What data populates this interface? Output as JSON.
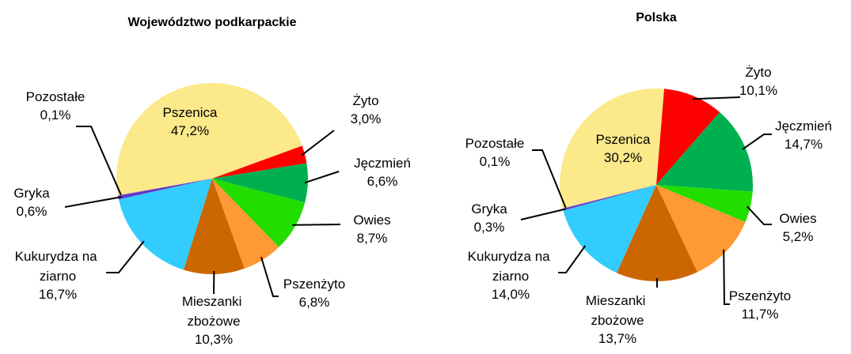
{
  "chart_data": [
    {
      "type": "pie",
      "title": "Województwo podkarpackie",
      "categories": [
        "Pszenica",
        "Żyto",
        "Jęczmień",
        "Owies",
        "Pszenżyto",
        "Mieszanki zbożowe",
        "Kukurydza na ziarno",
        "Gryka",
        "Pozostałe"
      ],
      "values": [
        47.2,
        3.0,
        6.6,
        8.7,
        6.8,
        10.3,
        16.7,
        0.6,
        0.1
      ],
      "value_labels": [
        "47,2%",
        "3,0%",
        "6,6%",
        "8,7%",
        "6,8%",
        "10,3%",
        "16,7%",
        "0,6%",
        "0,1%"
      ],
      "colors": [
        "#fbe98a",
        "#ff0000",
        "#00b050",
        "#22dd00",
        "#ff9933",
        "#cc6600",
        "#33ccff",
        "#6633cc",
        "#999999"
      ]
    },
    {
      "type": "pie",
      "title": "Polska",
      "categories": [
        "Pszenica",
        "Żyto",
        "Jęczmień",
        "Owies",
        "Pszenżyto",
        "Mieszanki zbożowe",
        "Kukurydza na ziarno",
        "Gryka",
        "Pozostałe"
      ],
      "values": [
        30.2,
        10.1,
        14.7,
        5.2,
        11.7,
        13.7,
        14.0,
        0.3,
        0.1
      ],
      "value_labels": [
        "30,2%",
        "10,1%",
        "14,7%",
        "5,2%",
        "11,7%",
        "13,7%",
        "14,0%",
        "0,3%",
        "0,1%"
      ],
      "colors": [
        "#fbe98a",
        "#ff0000",
        "#00b050",
        "#22dd00",
        "#ff9933",
        "#cc6600",
        "#33ccff",
        "#6633cc",
        "#999999"
      ]
    }
  ]
}
